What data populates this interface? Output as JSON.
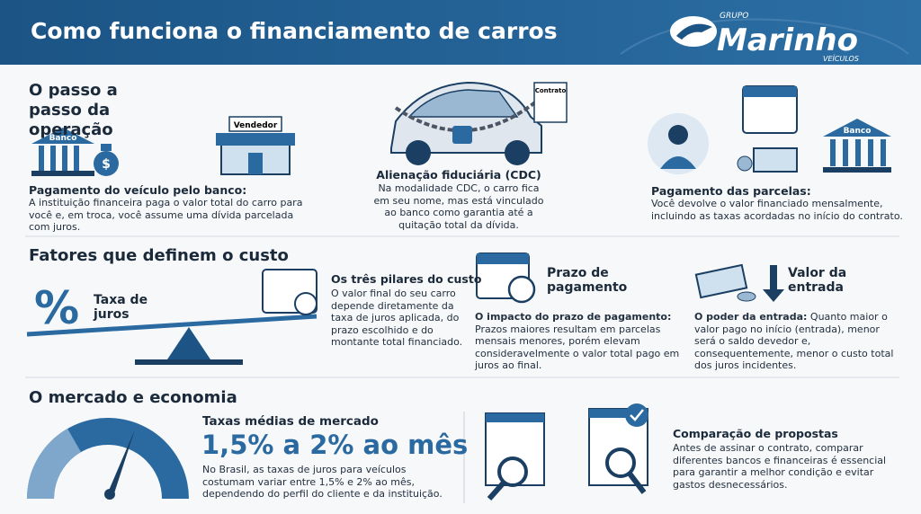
{
  "header": {
    "title": "Como funciona o financiamento de carros",
    "logo_top": "GRUPO",
    "logo_name": "Marinho",
    "logo_bottom": "VEÍCULOS"
  },
  "steps_section": {
    "title": "O passo a passo da operação",
    "icon_labels": [
      "Banco",
      "Vendedor",
      "Contrato",
      "Banco"
    ],
    "steps": [
      {
        "title": "Pagamento do veículo pelo banco:",
        "text": "A instituição financeira paga o valor total do carro para você e, em troca, você assume uma dívida parcelada com juros."
      },
      {
        "title": "Alienação fiduciária (CDC)",
        "text": "Na modalidade CDC, o carro fica em seu nome, mas está vinculado ao banco como garantia até a quitação total da dívida."
      },
      {
        "title": "Pagamento das parcelas:",
        "text": "Você devolve o valor financiado mensalmente, incluindo as taxas acordadas no início do contrato."
      }
    ]
  },
  "cost_section": {
    "title": "Fatores que definem o custo",
    "percent_symbol": "%",
    "rate_label": "Taxa de juros",
    "pillars": {
      "title": "Os três pilares do custo",
      "text": "O valor final do seu carro depende diretamente da taxa de juros aplicada, do prazo escolhido e do montante total financiado."
    },
    "term": {
      "label": "Prazo de pagamento",
      "lead": "O impacto do prazo de pagamento:",
      "text": "Prazos maiores resultam em parcelas mensais menores, porém elevam consideravelmente o valor total pago em juros ao final."
    },
    "down_payment": {
      "label": "Valor da entrada",
      "lead": "O poder da entrada:",
      "text": "Quanto maior o valor pago no início (entrada), menor será o saldo devedor e, consequentemente, menor o custo total dos juros incidentes."
    }
  },
  "market_section": {
    "title": "O mercado e economia",
    "rates_title": "Taxas médias de mercado",
    "rates_value": "1,5% a 2% ao mês",
    "rates_text": "No Brasil, as taxas de juros para veículos costumam variar entre 1,5% e 2% ao mês, dependendo do perfil do cliente e da instituição.",
    "compare_title": "Comparação de propostas",
    "compare_text": "Antes de assinar o contrato, comparar diferentes bancos e financeiras é essencial para garantir a melhor condição e evitar gastos desnecessários."
  }
}
